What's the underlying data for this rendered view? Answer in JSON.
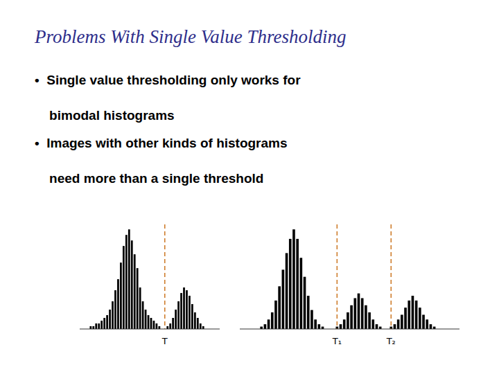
{
  "title": "Problems With Single Value Thresholding",
  "annotations": [
    "•  Single value thresholding only works for",
    "    bimodal histograms",
    "•  Images with other kinds of histograms",
    "    need more than a single threshold"
  ],
  "chart_data": [
    {
      "type": "bar",
      "color": "#000000",
      "tick_labels": false,
      "grid": false,
      "ylim": [
        0,
        37.8
      ],
      "values": [
        0,
        0,
        0,
        1,
        1,
        2,
        2,
        3,
        4,
        5,
        7,
        10,
        14,
        18,
        24,
        30,
        34,
        36,
        32,
        27,
        22,
        15,
        10,
        7,
        5,
        4,
        3,
        2,
        1,
        0,
        0,
        1,
        2,
        4,
        7,
        10,
        13,
        15,
        14,
        12,
        9,
        6,
        4,
        2,
        1,
        0,
        0,
        0,
        0,
        0
      ],
      "thresholds": [
        {
          "x": 30,
          "label": "T",
          "color": "#CC7722"
        }
      ]
    },
    {
      "type": "bar",
      "color": "#000000",
      "tick_labels": false,
      "grid": false,
      "ylim": [
        0,
        44.1
      ],
      "values": [
        0,
        0,
        0,
        0,
        0,
        1,
        2,
        4,
        7,
        12,
        18,
        25,
        32,
        38,
        42,
        38,
        30,
        22,
        14,
        8,
        4,
        2,
        1,
        0,
        0,
        0,
        1,
        2,
        4,
        7,
        10,
        13,
        15,
        13,
        10,
        7,
        4,
        2,
        1,
        0,
        0,
        1,
        2,
        4,
        6,
        9,
        12,
        14,
        12,
        9,
        6,
        4,
        2,
        1,
        0,
        0,
        0,
        0,
        0,
        0
      ],
      "thresholds": [
        {
          "x": 26,
          "label": "T₁",
          "color": "#CC7722"
        },
        {
          "x": 41,
          "label": "T₂",
          "color": "#CC7722"
        }
      ]
    }
  ]
}
